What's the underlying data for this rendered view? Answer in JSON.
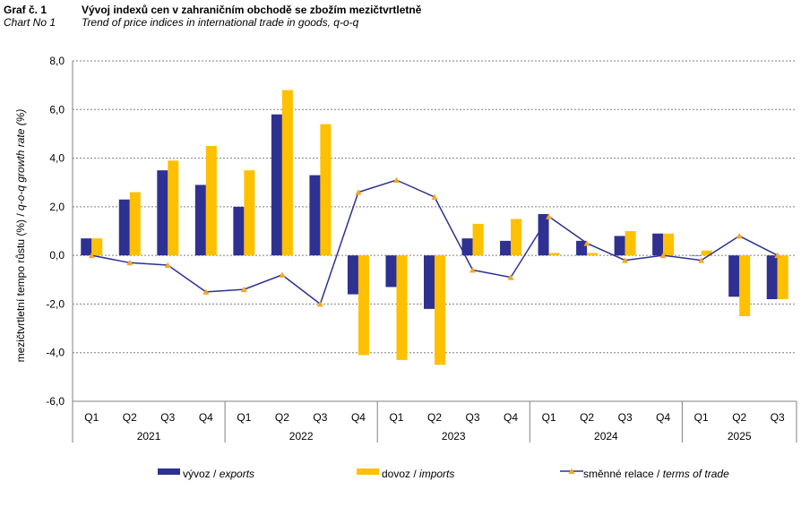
{
  "header": {
    "label_cz": "Graf č. 1",
    "label_en": "Chart No 1",
    "title_cz": "Vývoj indexů cen v zahraničním obchodě se zbožím mezičtvrtletně",
    "title_en": "Trend of price indices in international trade in goods, q-o-q"
  },
  "colors": {
    "exports": "#2e3192",
    "imports": "#ffc000",
    "tot_line": "#2e3192",
    "tot_marker": "#f7a823",
    "grid": "#808080"
  },
  "chart_data": {
    "type": "bar",
    "ylabel_cz": "mezičtvrtletní tempo růstu (%) / ",
    "ylabel_en": "q-o-q growth rate (%)",
    "ylim": [
      -6,
      8
    ],
    "yticks": [
      "8,0",
      "6,0",
      "4,0",
      "2,0",
      "0,0",
      "-2,0",
      "-4,0",
      "-6,0"
    ],
    "grid": true,
    "legend_position": "bottom",
    "categories": [
      "Q1",
      "Q2",
      "Q3",
      "Q4",
      "Q1",
      "Q2",
      "Q3",
      "Q4",
      "Q1",
      "Q2",
      "Q3",
      "Q4",
      "Q1",
      "Q2",
      "Q3",
      "Q4",
      "Q1",
      "Q2",
      "Q3"
    ],
    "year_groups": [
      {
        "label": "2021",
        "count": 4
      },
      {
        "label": "2022",
        "count": 4
      },
      {
        "label": "2023",
        "count": 4
      },
      {
        "label": "2024",
        "count": 4
      },
      {
        "label": "2025",
        "count": 3
      }
    ],
    "series": [
      {
        "name_cz": "vývoz",
        "name_en": "exports",
        "kind": "bar",
        "values": [
          0.7,
          2.3,
          3.5,
          2.9,
          2.0,
          5.8,
          3.3,
          -1.6,
          -1.3,
          -2.2,
          0.7,
          0.6,
          1.7,
          0.6,
          0.8,
          0.9,
          0.0,
          -1.7,
          -1.8
        ]
      },
      {
        "name_cz": "dovoz",
        "name_en": "imports",
        "kind": "bar",
        "values": [
          0.7,
          2.6,
          3.9,
          4.5,
          3.5,
          6.8,
          5.4,
          -4.1,
          -4.3,
          -4.5,
          1.3,
          1.5,
          0.1,
          0.1,
          1.0,
          0.9,
          0.2,
          -2.5,
          -1.8
        ]
      },
      {
        "name_cz": "směnné relace",
        "name_en": "terms of trade",
        "kind": "line",
        "values": [
          0.0,
          -0.3,
          -0.4,
          -1.5,
          -1.4,
          -0.8,
          -2.0,
          2.6,
          3.1,
          2.4,
          -0.6,
          -0.9,
          1.6,
          0.5,
          -0.2,
          0.0,
          -0.2,
          0.8,
          0.0
        ]
      }
    ]
  }
}
